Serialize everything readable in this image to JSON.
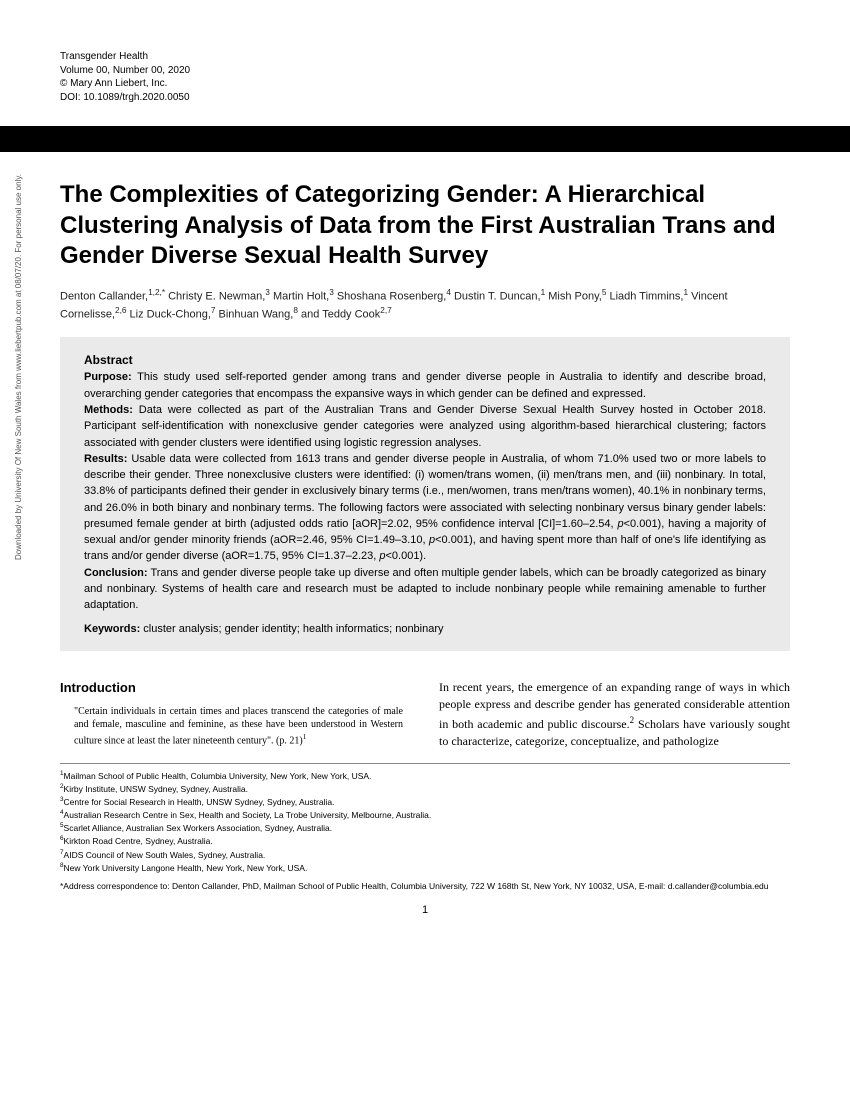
{
  "meta": {
    "journal": "Transgender Health",
    "volume_line": "Volume 00, Number 00, 2020",
    "copyright": "© Mary Ann Liebert, Inc.",
    "doi": "DOI: 10.1089/trgh.2020.0050"
  },
  "title": "The Complexities of Categorizing Gender: A Hierarchical Clustering Analysis of Data from the First Australian Trans and Gender Diverse Sexual Health Survey",
  "authors_html": "Denton Callander,<sup>1,2,*</sup> Christy E. Newman,<sup>3</sup> Martin Holt,<sup>3</sup> Shoshana Rosenberg,<sup>4</sup> Dustin T. Duncan,<sup>1</sup> Mish Pony,<sup>5</sup> Liadh Timmins,<sup>1</sup> Vincent Cornelisse,<sup>2,6</sup> Liz Duck-Chong,<sup>7</sup> Binhuan Wang,<sup>8</sup> and Teddy Cook<sup>2,7</sup>",
  "abstract": {
    "label": "Abstract",
    "purpose_label": "Purpose:",
    "purpose": " This study used self-reported gender among trans and gender diverse people in Australia to identify and describe broad, overarching gender categories that encompass the expansive ways in which gender can be defined and expressed.",
    "methods_label": "Methods:",
    "methods": " Data were collected as part of the Australian Trans and Gender Diverse Sexual Health Survey hosted in October 2018. Participant self-identification with nonexclusive gender categories were analyzed using algorithm-based hierarchical clustering; factors associated with gender clusters were identified using logistic regression analyses.",
    "results_label": "Results:",
    "results": " Usable data were collected from 1613 trans and gender diverse people in Australia, of whom 71.0% used two or more labels to describe their gender. Three nonexclusive clusters were identified: (i) women/trans women, (ii) men/trans men, and (iii) nonbinary. In total, 33.8% of participants defined their gender in exclusively binary terms (i.e., men/women, trans men/trans women), 40.1% in nonbinary terms, and 26.0% in both binary and nonbinary terms. The following factors were associated with selecting nonbinary versus binary gender labels: presumed female gender at birth (adjusted odds ratio [aOR]=2.02, 95% confidence interval [CI]=1.60–2.54, <i>p</i><0.001), having a majority of sexual and/or gender minority friends (aOR=2.46, 95% CI=1.49–3.10, <i>p</i><0.001), and having spent more than half of one's life identifying as trans and/or gender diverse (aOR=1.75, 95% CI=1.37–2.23, <i>p</i><0.001).",
    "conclusion_label": "Conclusion:",
    "conclusion": " Trans and gender diverse people take up diverse and often multiple gender labels, which can be broadly categorized as binary and nonbinary. Systems of health care and research must be adapted to include nonbinary people while remaining amenable to further adaptation.",
    "keywords_label": "Keywords:",
    "keywords": " cluster analysis; gender identity; health informatics; nonbinary"
  },
  "intro": {
    "heading": "Introduction",
    "quote": "\"Certain individuals in certain times and places transcend the categories of male and female, masculine and feminine, as these have been understood in Western culture since at least the later nineteenth century\". (p. 21)",
    "quote_ref": "1",
    "right_para": "In recent years, the emergence of an expanding range of ways in which people express and describe gender has generated considerable attention in both academic and public discourse.<sup>2</sup> Scholars have variously sought to characterize, categorize, conceptualize, and pathologize"
  },
  "affiliations": [
    "<sup>1</sup>Mailman School of Public Health, Columbia University, New York, New York, USA.",
    "<sup>2</sup>Kirby Institute, UNSW Sydney, Sydney, Australia.",
    "<sup>3</sup>Centre for Social Research in Health, UNSW Sydney, Sydney, Australia.",
    "<sup>4</sup>Australian Research Centre in Sex, Health and Society, La Trobe University, Melbourne, Australia.",
    "<sup>5</sup>Scarlet Alliance, Australian Sex Workers Association, Sydney, Australia.",
    "<sup>6</sup>Kirkton Road Centre, Sydney, Australia.",
    "<sup>7</sup>AIDS Council of New South Wales, Sydney, Australia.",
    "<sup>8</sup>New York University Langone Health, New York, New York, USA."
  ],
  "correspondence": "*Address correspondence to: Denton Callander, PhD, Mailman School of Public Health, Columbia University, 722 W 168th St, New York, NY 10032, USA, E-mail: d.callander@columbia.edu",
  "page_number": "1",
  "side_text": "Downloaded by University Of New South Wales from www.liebertpub.com at 08/07/20. For personal use only."
}
